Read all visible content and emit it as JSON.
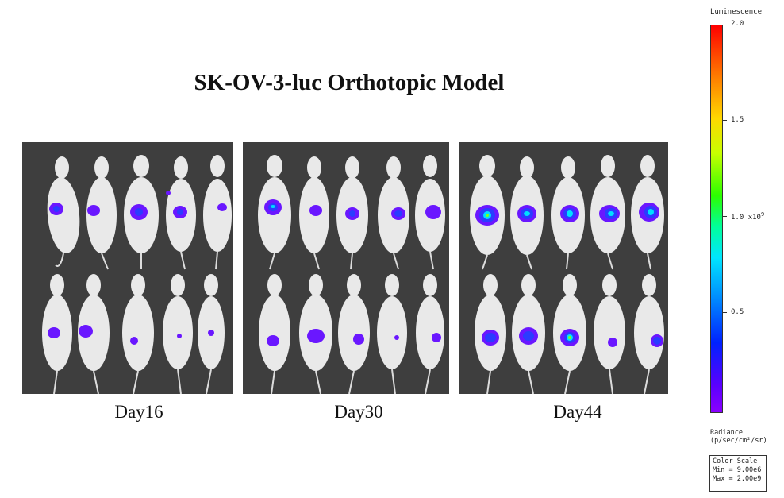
{
  "title": "SK-OV-3-luc Orthotopic Model",
  "panels": [
    {
      "label": "Day16"
    },
    {
      "label": "Day30"
    },
    {
      "label": "Day44"
    }
  ],
  "colorbar": {
    "title": "Luminescence",
    "ticks": [
      "2.0",
      "1.5",
      "1.0",
      "0.5"
    ],
    "multiplier": "x10",
    "exponent": "9",
    "radiance_label": "Radiance",
    "radiance_unit": "(p/sec/cm²/sr)",
    "scale_box_title": "Color Scale",
    "min": "Min = 9.00e6",
    "max": "Max = 2.00e9",
    "colors": [
      "#ff0000",
      "#ffd800",
      "#2cff00",
      "#00e6ff",
      "#0022ff",
      "#8a00ff"
    ]
  }
}
